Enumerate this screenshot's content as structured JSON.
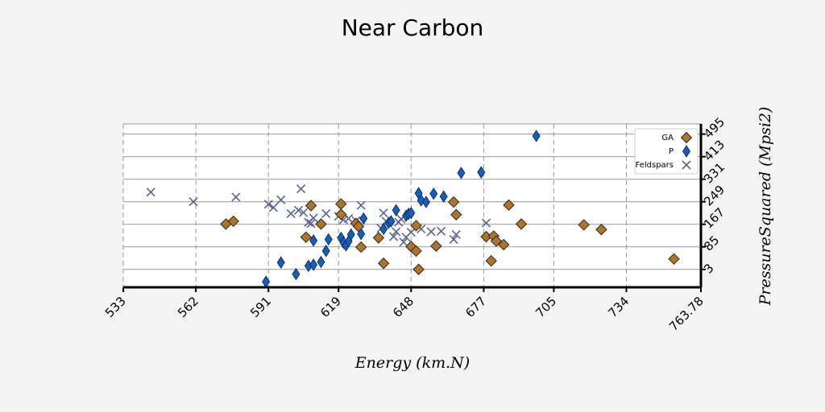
{
  "chart_data": {
    "type": "scatter",
    "title": "Near Carbon",
    "xlabel": "Energy (km.N)",
    "ylabel": "PressureSquared (Mpsi2)",
    "xlim": [
      533,
      763.78
    ],
    "ylim": [
      -62,
      532
    ],
    "xticks": [
      "533",
      "562",
      "591",
      "619",
      "648",
      "677",
      "705",
      "734",
      "763.78"
    ],
    "xtick_values": [
      533,
      562,
      591,
      619,
      648,
      677,
      705,
      734,
      763.78
    ],
    "yticks": [
      "3",
      "85",
      "167",
      "249",
      "331",
      "413",
      "495"
    ],
    "ytick_values": [
      3,
      85,
      167,
      249,
      331,
      413,
      495
    ],
    "grid": true,
    "legend_position": "top-right",
    "series": [
      {
        "name": "GA",
        "marker": "diamond",
        "color": "#b07424",
        "points": [
          [
            574,
            168
          ],
          [
            577,
            178
          ],
          [
            606,
            120
          ],
          [
            608,
            235
          ],
          [
            612,
            168
          ],
          [
            620,
            241
          ],
          [
            620,
            203
          ],
          [
            626,
            170
          ],
          [
            627,
            159
          ],
          [
            628,
            84
          ],
          [
            635,
            118
          ],
          [
            637,
            25
          ],
          [
            648,
            86
          ],
          [
            650,
            162
          ],
          [
            650,
            70
          ],
          [
            651,
            3
          ],
          [
            658,
            88
          ],
          [
            665,
            248
          ],
          [
            666,
            202
          ],
          [
            678,
            122
          ],
          [
            680,
            34
          ],
          [
            681,
            124
          ],
          [
            682,
            106
          ],
          [
            685,
            93
          ],
          [
            687,
            237
          ],
          [
            692,
            168
          ],
          [
            717,
            165
          ],
          [
            724,
            148
          ],
          [
            753,
            41
          ]
        ]
      },
      {
        "name": "P",
        "marker": "thin-diamond",
        "color": "#1060c0",
        "points": [
          [
            590,
            -42
          ],
          [
            596,
            28
          ],
          [
            602,
            -14
          ],
          [
            607,
            16
          ],
          [
            609,
            20
          ],
          [
            609,
            108
          ],
          [
            612,
            30
          ],
          [
            614,
            70
          ],
          [
            615,
            112
          ],
          [
            620,
            118
          ],
          [
            621,
            100
          ],
          [
            622,
            90
          ],
          [
            623,
            105
          ],
          [
            624,
            130
          ],
          [
            628,
            132
          ],
          [
            629,
            188
          ],
          [
            637,
            150
          ],
          [
            639,
            172
          ],
          [
            640,
            178
          ],
          [
            642,
            218
          ],
          [
            646,
            198
          ],
          [
            647,
            205
          ],
          [
            648,
            208
          ],
          [
            651,
            280
          ],
          [
            652,
            254
          ],
          [
            654,
            248
          ],
          [
            657,
            278
          ],
          [
            661,
            268
          ],
          [
            668,
            354
          ],
          [
            676,
            356
          ],
          [
            698,
            488
          ]
        ]
      },
      {
        "name": "Feldspars",
        "marker": "x",
        "color": "#5a6494",
        "points": [
          [
            544,
            284
          ],
          [
            561,
            249
          ],
          [
            578,
            266
          ],
          [
            591,
            240
          ],
          [
            593,
            228
          ],
          [
            596,
            256
          ],
          [
            600,
            206
          ],
          [
            603,
            218
          ],
          [
            604,
            296
          ],
          [
            605,
            210
          ],
          [
            607,
            174
          ],
          [
            608,
            170
          ],
          [
            609,
            190
          ],
          [
            614,
            206
          ],
          [
            619,
            196
          ],
          [
            621,
            184
          ],
          [
            623,
            188
          ],
          [
            626,
            180
          ],
          [
            628,
            236
          ],
          [
            636,
            152
          ],
          [
            637,
            208
          ],
          [
            638,
            178
          ],
          [
            641,
            122
          ],
          [
            642,
            140
          ],
          [
            643,
            175
          ],
          [
            644,
            186
          ],
          [
            645,
            102
          ],
          [
            646,
            120
          ],
          [
            648,
            138
          ],
          [
            652,
            150
          ],
          [
            656,
            140
          ],
          [
            660,
            142
          ],
          [
            665,
            112
          ],
          [
            666,
            130
          ],
          [
            678,
            172
          ]
        ]
      }
    ]
  }
}
